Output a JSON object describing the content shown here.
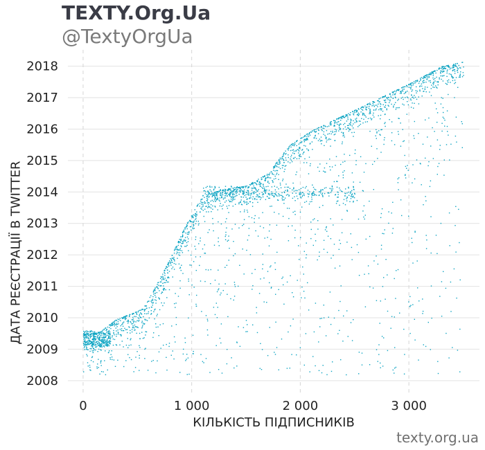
{
  "header": {
    "title": "TEXTY.Org.Ua",
    "subtitle": "@TextyOrgUa"
  },
  "footer": {
    "source": "texty.org.ua"
  },
  "colors": {
    "points": "#0aa3c2",
    "grid": "#e2e2e2",
    "vgrid": "#d5d5d5",
    "text": "#222222"
  },
  "chart_data": {
    "type": "scatter",
    "xlabel": "КІЛЬКІСТЬ ПІДПИСНИКІВ",
    "ylabel": "ДАТА РЕЄСТРАЦІЇ В TWITTER",
    "xlim": [
      -140,
      3650
    ],
    "ylim": [
      2007.6,
      2018.3
    ],
    "x_ticks": [
      0,
      1000,
      2000,
      3000
    ],
    "x_tick_labels": [
      "0",
      "1 000",
      "2 000",
      "3 000"
    ],
    "y_ticks": [
      2008,
      2009,
      2010,
      2011,
      2012,
      2013,
      2014,
      2015,
      2016,
      2017,
      2018
    ],
    "y_tick_labels": [
      "2008",
      "2009",
      "2010",
      "2011",
      "2012",
      "2013",
      "2014",
      "2015",
      "2016",
      "2017",
      "2018"
    ],
    "grid": "horizontal solid, vertical dashed",
    "frontier": {
      "x": [
        0,
        150,
        300,
        450,
        550,
        650,
        800,
        950,
        1100,
        1300,
        1500,
        1700,
        1900,
        2100,
        2400,
        2700,
        3000,
        3300,
        3500
      ],
      "y": [
        2009.5,
        2009.55,
        2009.95,
        2010.15,
        2010.3,
        2010.9,
        2011.9,
        2013.0,
        2013.9,
        2014.1,
        2014.2,
        2014.6,
        2015.5,
        2015.95,
        2016.45,
        2016.95,
        2017.45,
        2018.0,
        2018.15
      ]
    },
    "point_count_approx": 3200
  }
}
